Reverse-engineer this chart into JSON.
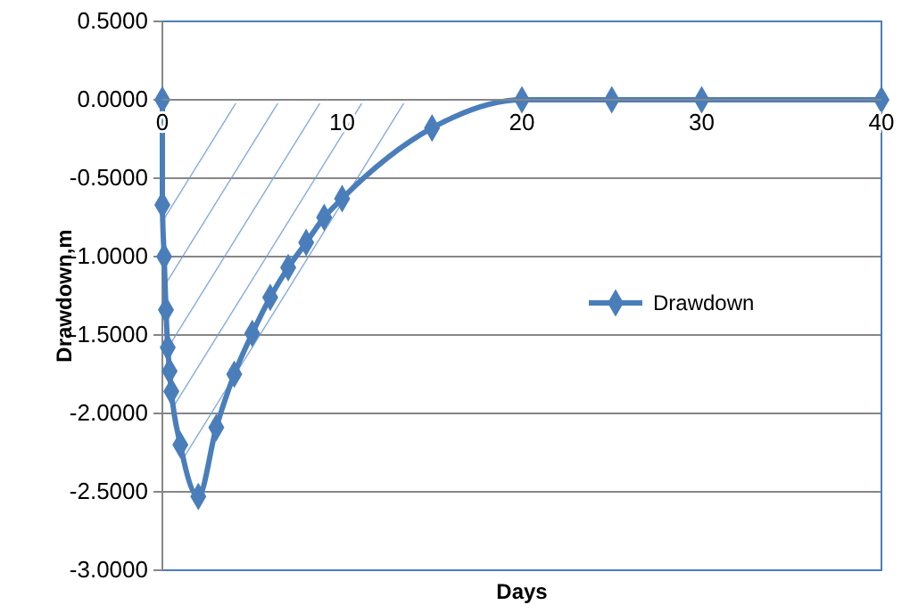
{
  "chart_data": {
    "type": "line",
    "xlabel": "Days",
    "ylabel": "Drawdown,m",
    "x": [
      0,
      0,
      0.1,
      0.2,
      0.3,
      0.4,
      0.5,
      1,
      2,
      3,
      4,
      5,
      6,
      7,
      8,
      9,
      10,
      15,
      20,
      25,
      30,
      40
    ],
    "series": [
      {
        "name": "Drawdown",
        "color": "#4a7ebb",
        "values": [
          0,
          -0.67,
          -1.0,
          -1.34,
          -1.58,
          -1.73,
          -1.86,
          -2.2,
          -2.53,
          -2.09,
          -1.75,
          -1.49,
          -1.26,
          -1.07,
          -0.91,
          -0.75,
          -0.63,
          -0.18,
          0,
          0,
          0,
          0
        ]
      }
    ],
    "xlim": [
      0,
      40
    ],
    "xticks": [
      0,
      10,
      20,
      30,
      40
    ],
    "ylim": [
      -3,
      0.5
    ],
    "yticks": [
      {
        "value": -3,
        "label": "-3.0000"
      },
      {
        "value": -2.5,
        "label": "-2.5000"
      },
      {
        "value": -2,
        "label": "-2.0000"
      },
      {
        "value": -1.5,
        "label": "-1.5000"
      },
      {
        "value": -1,
        "label": "-1.0000"
      },
      {
        "value": -0.5,
        "label": "-0.5000"
      },
      {
        "value": 0,
        "label": "0.0000"
      },
      {
        "value": 0.5,
        "label": "0.5000"
      }
    ],
    "grid": "y",
    "legend": "right",
    "marker": "diamond",
    "line_style": "solid"
  }
}
